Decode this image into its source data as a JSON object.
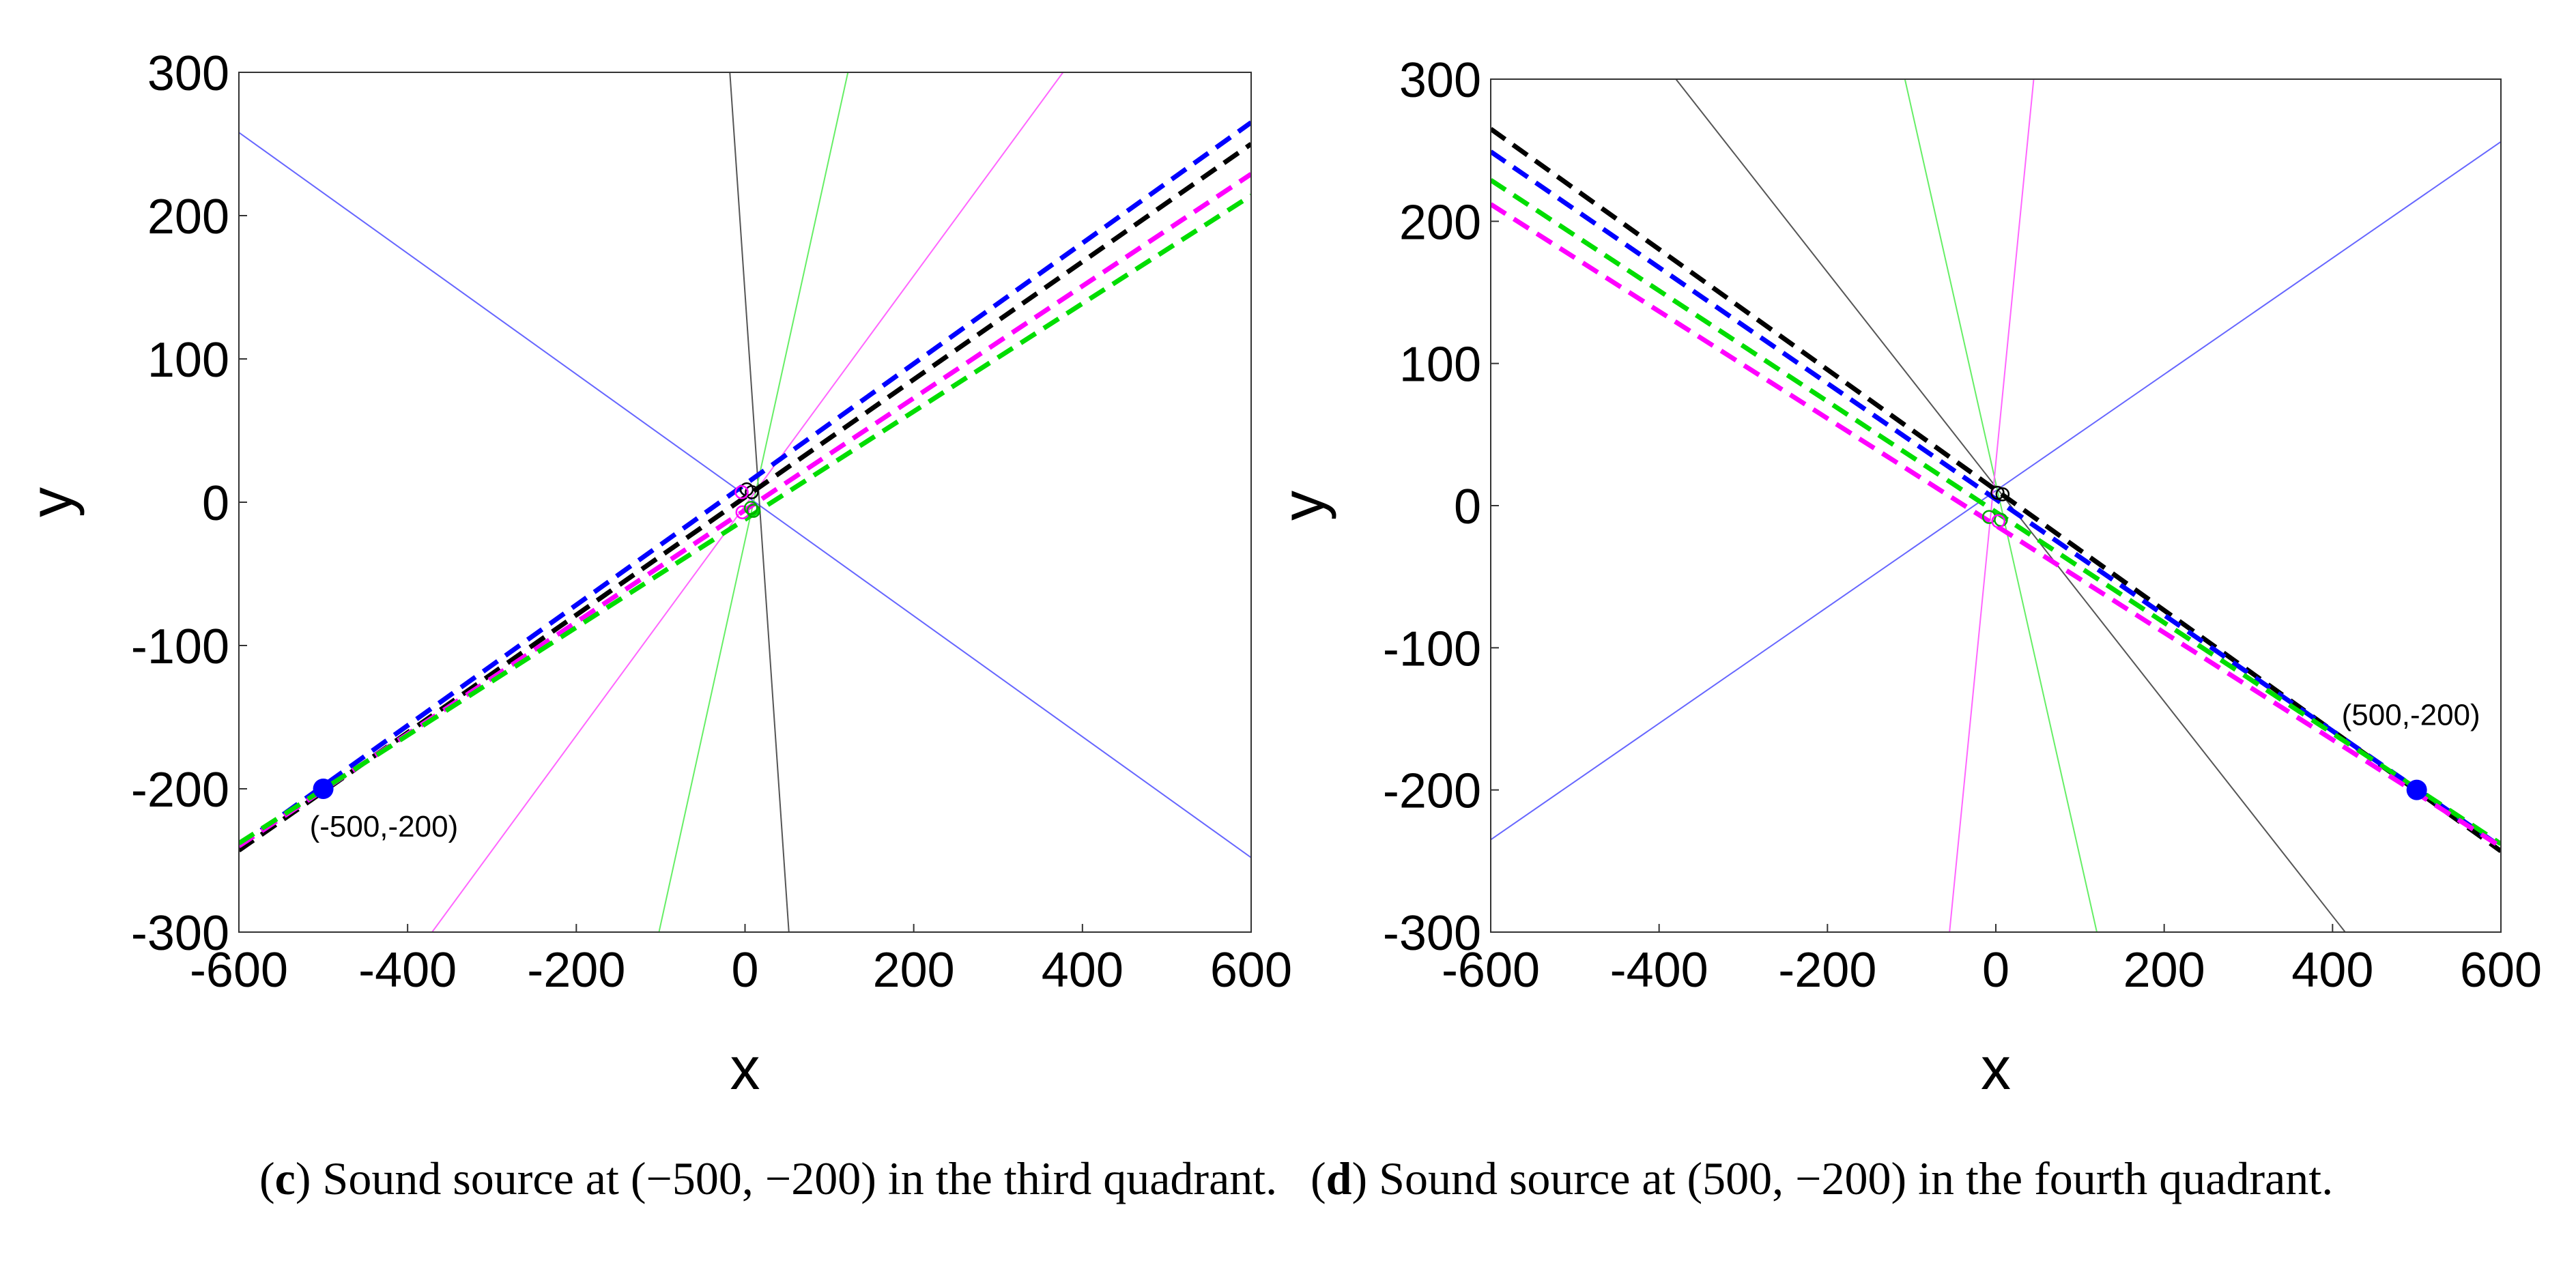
{
  "chart_data": [
    {
      "type": "line",
      "panel": "c",
      "xlabel": "x",
      "ylabel": "y",
      "xlim": [
        -600,
        600
      ],
      "ylim": [
        -300,
        300
      ],
      "xticks": [
        -600,
        -400,
        -200,
        0,
        200,
        400,
        600
      ],
      "yticks": [
        -300,
        -200,
        -100,
        0,
        100,
        200,
        300
      ],
      "grid": false,
      "source": {
        "x": -500,
        "y": -200,
        "label": "(-500,-200)",
        "color": "#0000ff"
      },
      "dashed_lines": [
        {
          "color": "#0000ff",
          "x": [
            -600,
            600
          ],
          "y": [
            -240,
            265
          ]
        },
        {
          "color": "#000000",
          "x": [
            -600,
            600
          ],
          "y": [
            -243,
            250
          ]
        },
        {
          "color": "#ff00ff",
          "x": [
            -600,
            600
          ],
          "y": [
            -240,
            229
          ]
        },
        {
          "color": "#00dd00",
          "x": [
            -600,
            600
          ],
          "y": [
            -238,
            214
          ]
        }
      ],
      "thin_lines": [
        {
          "color": "#6666ff",
          "x": [
            -600,
            600
          ],
          "y": [
            258,
            -248
          ]
        },
        {
          "color": "#555555",
          "x": [
            -18,
            52
          ],
          "y": [
            300,
            -300
          ]
        },
        {
          "color": "#66ee66",
          "x": [
            122,
            -102
          ],
          "y": [
            300,
            -300
          ]
        },
        {
          "color": "#ff66ff",
          "x": [
            377,
            -371
          ],
          "y": [
            300,
            -300
          ]
        }
      ],
      "markers": [
        {
          "color": "#000000",
          "x": [
            2,
            8
          ],
          "y": [
            9,
            7
          ]
        },
        {
          "color": "#ff00ff",
          "x": [
            -4,
            -3
          ],
          "y": [
            7,
            -7
          ]
        },
        {
          "color": "#00aa00",
          "x": [
            7,
            10
          ],
          "y": [
            -4,
            -6
          ]
        }
      ]
    },
    {
      "type": "line",
      "panel": "d",
      "xlabel": "x",
      "ylabel": "y",
      "xlim": [
        -600,
        600
      ],
      "ylim": [
        -300,
        300
      ],
      "xticks": [
        -600,
        -400,
        -200,
        0,
        200,
        400,
        600
      ],
      "yticks": [
        -300,
        -200,
        -100,
        0,
        100,
        200,
        300
      ],
      "grid": false,
      "source": {
        "x": 500,
        "y": -200,
        "label": "(500,-200)",
        "color": "#0000ff"
      },
      "dashed_lines": [
        {
          "color": "#000000",
          "x": [
            -600,
            600
          ],
          "y": [
            265,
            -243
          ]
        },
        {
          "color": "#0000ff",
          "x": [
            -600,
            600
          ],
          "y": [
            249,
            -240
          ]
        },
        {
          "color": "#00dd00",
          "x": [
            -600,
            600
          ],
          "y": [
            229,
            -238
          ]
        },
        {
          "color": "#ff00ff",
          "x": [
            -600,
            600
          ],
          "y": [
            212,
            -240
          ]
        }
      ],
      "thin_lines": [
        {
          "color": "#6666ff",
          "x": [
            -600,
            600
          ],
          "y": [
            -235,
            256
          ]
        },
        {
          "color": "#555555",
          "x": [
            -380,
            415
          ],
          "y": [
            300,
            -300
          ]
        },
        {
          "color": "#66ee66",
          "x": [
            -108,
            120
          ],
          "y": [
            300,
            -300
          ]
        },
        {
          "color": "#ff66ff",
          "x": [
            45,
            -55
          ],
          "y": [
            300,
            -300
          ]
        }
      ],
      "markers": [
        {
          "color": "#000000",
          "x": [
            2,
            8
          ],
          "y": [
            9,
            8
          ]
        },
        {
          "color": "#00aa00",
          "x": [
            -8,
            6
          ],
          "y": [
            -8,
            -10
          ]
        },
        {
          "color": "#ff00ff",
          "x": [
            3
          ],
          "y": [
            -11
          ]
        }
      ]
    }
  ],
  "captions": {
    "c": {
      "letter": "c",
      "prefix": "(",
      "suffix": ")",
      "text": " Sound source at (−500, −200) in the third quadrant."
    },
    "d": {
      "letter": "d",
      "prefix": "(",
      "suffix": ")",
      "text": " Sound source at (500, −200) in the fourth quadrant."
    }
  }
}
